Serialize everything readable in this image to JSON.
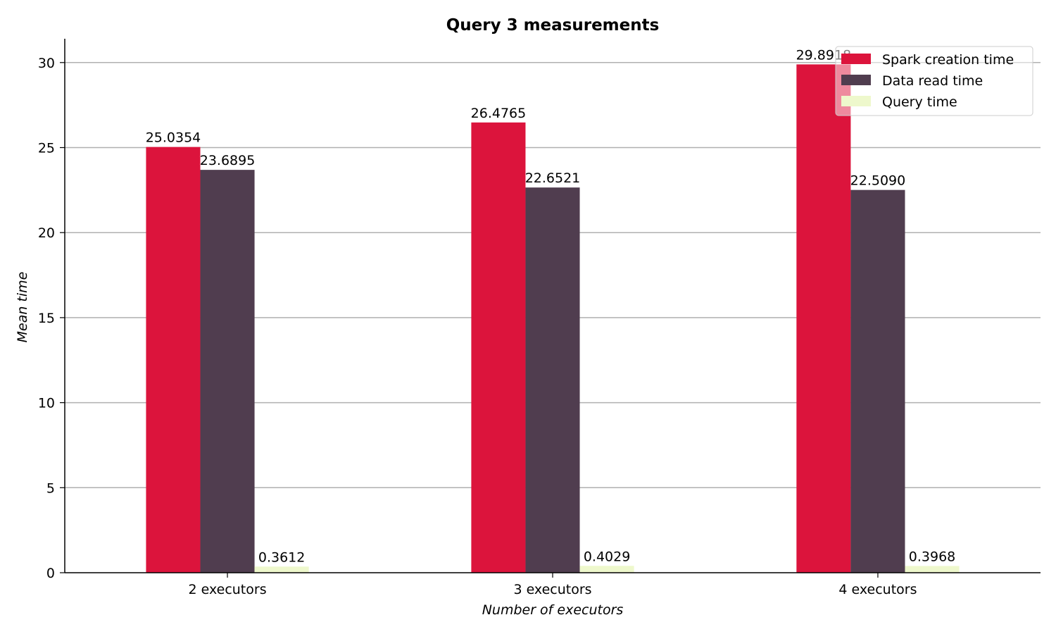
{
  "chart_data": {
    "type": "bar",
    "title": "Query 3 measurements",
    "xlabel": "Number of executors",
    "ylabel": "Mean time",
    "categories": [
      "2 executors",
      "3 executors",
      "4 executors"
    ],
    "series": [
      {
        "name": "Spark creation time",
        "color": "#dc143c",
        "values": [
          25.0354,
          26.4765,
          29.8918
        ],
        "labels": [
          "25.0354",
          "26.4765",
          "29.8918"
        ]
      },
      {
        "name": "Data read time",
        "color": "#503d4f",
        "values": [
          23.6895,
          22.6521,
          22.509
        ],
        "labels": [
          "23.6895",
          "22.6521",
          "22.5090"
        ]
      },
      {
        "name": "Query time",
        "color": "#eef8cc",
        "values": [
          0.3612,
          0.4029,
          0.3968
        ],
        "labels": [
          "0.3612",
          "0.4029",
          "0.3968"
        ]
      }
    ],
    "yticks": [
      0,
      5,
      10,
      15,
      20,
      25,
      30
    ],
    "ylim": [
      0,
      31.4
    ],
    "grid": "horizontal",
    "legend_position": "top-right"
  }
}
